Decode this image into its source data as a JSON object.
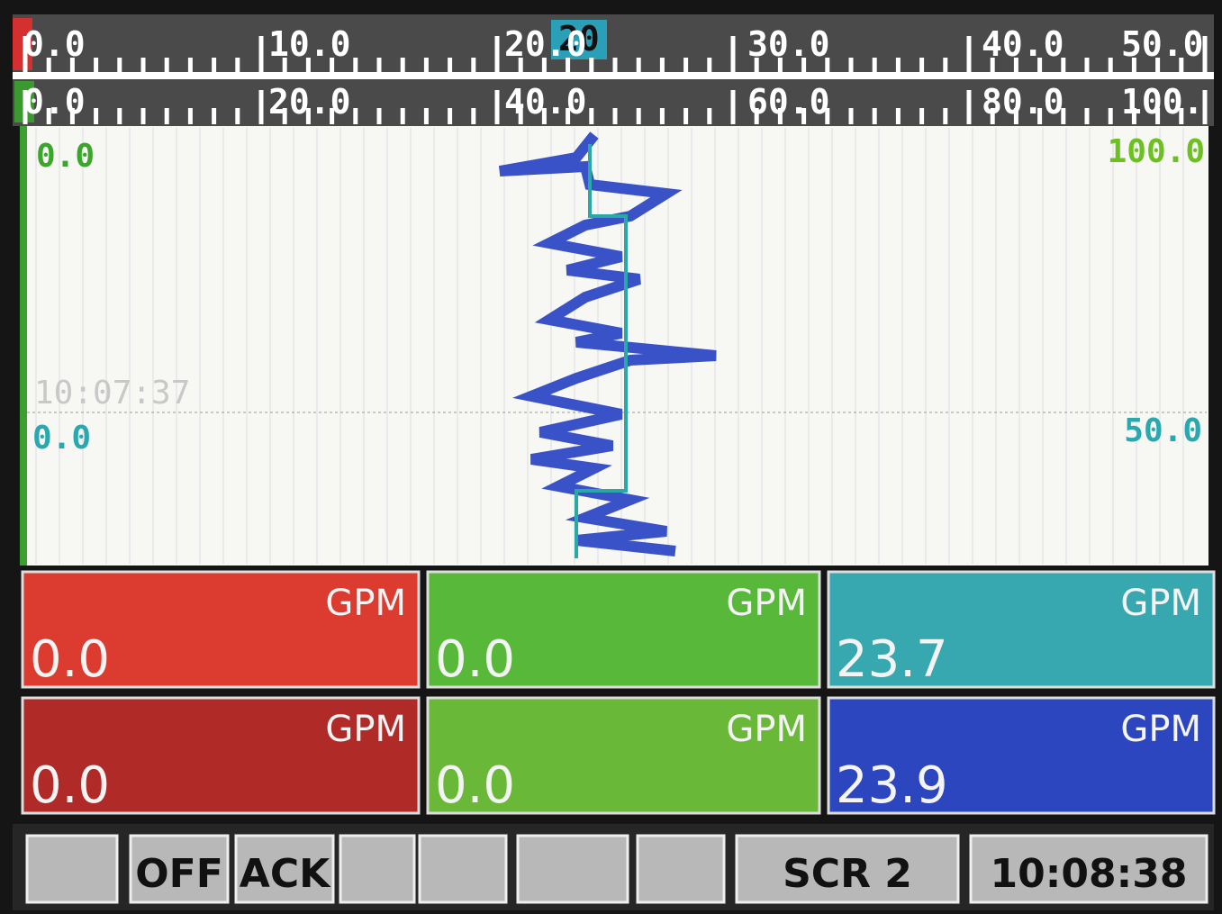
{
  "scale_top": {
    "labels": [
      "0.0",
      "10.0",
      "20.0",
      "30.0",
      "40.0",
      "50.0"
    ],
    "cursor": "20"
  },
  "scale_bottom": {
    "labels": [
      "0.0",
      "20.0",
      "40.0",
      "60.0",
      "80.0",
      "100."
    ]
  },
  "chart": {
    "green_min": "0.0",
    "green_max": "100.0",
    "timestamp": "10:07:37",
    "teal_min": "0.0",
    "teal_max": "50.0"
  },
  "panels": [
    {
      "unit": "GPM",
      "value": "0.0"
    },
    {
      "unit": "GPM",
      "value": "0.0"
    },
    {
      "unit": "GPM",
      "value": "23.7"
    },
    {
      "unit": "GPM",
      "value": "0.0"
    },
    {
      "unit": "GPM",
      "value": "0.0"
    },
    {
      "unit": "GPM",
      "value": "23.9"
    }
  ],
  "toolbar": {
    "off": "OFF",
    "ack": "ACK",
    "screen": "SCR 2",
    "clock": "10:08:38"
  }
}
